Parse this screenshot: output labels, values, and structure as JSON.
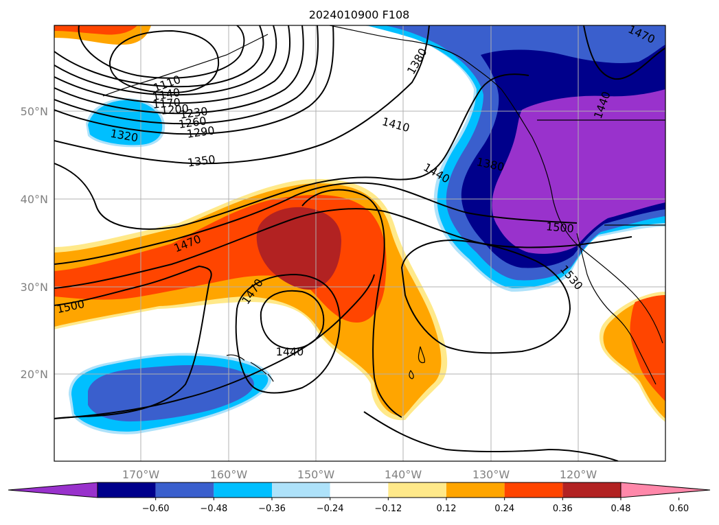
{
  "title": "2024010900 F108",
  "lat_labels": [
    "50°N",
    "40°N",
    "30°N",
    "20°N"
  ],
  "lon_labels": [
    "170°W",
    "160°W",
    "150°W",
    "140°W",
    "130°W",
    "120°W"
  ],
  "contour_labels": [
    "1110",
    "1140",
    "1170",
    "1200",
    "1230",
    "1260",
    "1290",
    "1320",
    "1350",
    "1380",
    "1410",
    "1440",
    "1380",
    "1440",
    "1470",
    "1500",
    "1470",
    "1440",
    "1500",
    "1530",
    "1470",
    "1440"
  ],
  "colorbar": {
    "ticks": [
      "−0.60",
      "−0.48",
      "−0.36",
      "−0.24",
      "−0.12",
      "0.12",
      "0.24",
      "0.36",
      "0.48",
      "0.60"
    ],
    "colors": [
      "#9932cc",
      "#00008b",
      "#3a5fcd",
      "#00bfff",
      "#aee2fa",
      "#ffffff",
      "#ffe98a",
      "#ffa500",
      "#ff4500",
      "#b22222",
      "#ff88aa"
    ]
  }
}
